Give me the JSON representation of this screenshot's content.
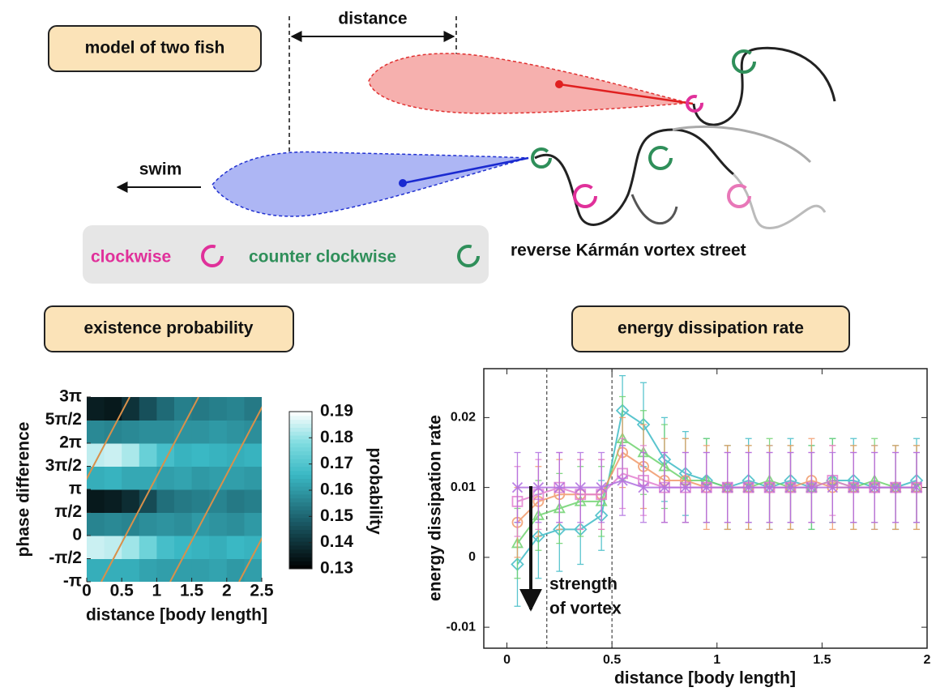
{
  "diagram": {
    "title": "model of two fish",
    "distance_label": "distance",
    "swim_label": "swim",
    "legend": {
      "clockwise": "clockwise",
      "counter_clockwise": "counter clockwise"
    },
    "vortex_label": "reverse Kármán vortex street"
  },
  "chart_data": [
    {
      "type": "heatmap",
      "title": "existence probability",
      "x_label": "distance [body length]",
      "y_label": "phase difference",
      "xlim": [
        0,
        2.5
      ],
      "xticks": [
        0,
        0.5,
        1,
        1.5,
        2,
        2.5
      ],
      "ylim": [
        -3.1416,
        9.4248
      ],
      "yticks": [
        {
          "value": -3.1416,
          "label": "-π"
        },
        {
          "value": -1.5708,
          "label": "-π/2"
        },
        0,
        {
          "value": 1.5708,
          "label": "π/2"
        },
        {
          "value": 3.1416,
          "label": "π"
        },
        {
          "value": 4.7124,
          "label": "3π/2"
        },
        {
          "value": 6.2832,
          "label": "2π"
        },
        {
          "value": 7.854,
          "label": "5π/2"
        },
        {
          "value": 9.4248,
          "label": "3π"
        }
      ],
      "z": [
        [
          0.164,
          0.164,
          0.164,
          0.162,
          0.161,
          0.161,
          0.161,
          0.162,
          0.16,
          0.161
        ],
        [
          0.185,
          0.184,
          0.181,
          0.175,
          0.168,
          0.166,
          0.165,
          0.164,
          0.166,
          0.165
        ],
        [
          0.156,
          0.157,
          0.156,
          0.158,
          0.159,
          0.158,
          0.16,
          0.159,
          0.158,
          0.16
        ],
        [
          0.135,
          0.136,
          0.139,
          0.145,
          0.152,
          0.154,
          0.155,
          0.156,
          0.154,
          0.155
        ],
        [
          0.164,
          0.165,
          0.163,
          0.163,
          0.161,
          0.162,
          0.16,
          0.161,
          0.161,
          0.16
        ],
        [
          0.184,
          0.185,
          0.182,
          0.174,
          0.168,
          0.165,
          0.166,
          0.165,
          0.164,
          0.165
        ],
        [
          0.157,
          0.156,
          0.157,
          0.158,
          0.158,
          0.159,
          0.159,
          0.16,
          0.159,
          0.158
        ],
        [
          0.136,
          0.135,
          0.14,
          0.146,
          0.151,
          0.155,
          0.154,
          0.155,
          0.156,
          0.154
        ]
      ],
      "zlim": [
        0.13,
        0.19
      ],
      "zticks": [
        0.13,
        0.14,
        0.15,
        0.16,
        0.17,
        0.18,
        0.19
      ],
      "colorbar_label": "probability"
    },
    {
      "type": "line",
      "title": "energy dissipation rate",
      "x_label": "distance  [body length]",
      "y_label": "energy dissipation rate",
      "annotation": [
        "strength",
        "of vortex"
      ],
      "xlim": [
        -0.11,
        2
      ],
      "xticks": [
        0,
        0.5,
        1,
        1.5,
        2
      ],
      "ylim": [
        -0.013,
        0.027
      ],
      "yticks": [
        -0.01,
        0,
        0.01,
        0.02
      ],
      "vlines": [
        0.19,
        0.5
      ],
      "x": [
        0.05,
        0.15,
        0.25,
        0.35,
        0.45,
        0.55,
        0.65,
        0.75,
        0.85,
        0.95,
        1.05,
        1.15,
        1.25,
        1.35,
        1.45,
        1.55,
        1.65,
        1.75,
        1.85,
        1.95
      ],
      "series": [
        {
          "color": "#3fbcc6",
          "marker": "diamond",
          "values": [
            -0.001,
            0.003,
            0.004,
            0.004,
            0.006,
            0.021,
            0.019,
            0.014,
            0.012,
            0.011,
            0.01,
            0.011,
            0.01,
            0.011,
            0.01,
            0.011,
            0.011,
            0.01,
            0.01,
            0.011
          ],
          "errors": [
            0.006,
            0.006,
            0.006,
            0.005,
            0.005,
            0.005,
            0.006,
            0.006,
            0.006,
            0.006,
            0.006,
            0.006,
            0.006,
            0.006,
            0.006,
            0.006,
            0.006,
            0.006,
            0.006,
            0.006
          ]
        },
        {
          "color": "#6fd36f",
          "marker": "triangle",
          "values": [
            0.002,
            0.006,
            0.007,
            0.008,
            0.008,
            0.017,
            0.015,
            0.013,
            0.011,
            0.011,
            0.01,
            0.01,
            0.011,
            0.01,
            0.01,
            0.011,
            0.01,
            0.011,
            0.01,
            0.01
          ],
          "errors": [
            0.005,
            0.005,
            0.005,
            0.005,
            0.005,
            0.006,
            0.006,
            0.006,
            0.006,
            0.006,
            0.006,
            0.006,
            0.006,
            0.006,
            0.006,
            0.006,
            0.006,
            0.006,
            0.006,
            0.006
          ]
        },
        {
          "color": "#f09a6a",
          "marker": "circle",
          "values": [
            0.005,
            0.008,
            0.009,
            0.009,
            0.009,
            0.015,
            0.013,
            0.011,
            0.011,
            0.01,
            0.01,
            0.01,
            0.01,
            0.01,
            0.011,
            0.01,
            0.01,
            0.01,
            0.01,
            0.01
          ],
          "errors": [
            0.005,
            0.005,
            0.005,
            0.005,
            0.005,
            0.005,
            0.006,
            0.006,
            0.006,
            0.006,
            0.006,
            0.006,
            0.006,
            0.006,
            0.006,
            0.006,
            0.006,
            0.006,
            0.006,
            0.006
          ]
        },
        {
          "color": "#e27fd0",
          "marker": "square",
          "values": [
            0.008,
            0.009,
            0.01,
            0.009,
            0.009,
            0.012,
            0.011,
            0.01,
            0.01,
            0.01,
            0.01,
            0.01,
            0.01,
            0.01,
            0.01,
            0.011,
            0.01,
            0.01,
            0.01,
            0.01
          ],
          "errors": [
            0.005,
            0.005,
            0.005,
            0.005,
            0.005,
            0.005,
            0.005,
            0.005,
            0.005,
            0.005,
            0.005,
            0.005,
            0.005,
            0.005,
            0.005,
            0.005,
            0.005,
            0.005,
            0.005,
            0.005
          ]
        },
        {
          "color": "#b06ee0",
          "marker": "cross",
          "values": [
            0.01,
            0.01,
            0.01,
            0.01,
            0.01,
            0.011,
            0.01,
            0.01,
            0.01,
            0.01,
            0.01,
            0.01,
            0.01,
            0.01,
            0.01,
            0.01,
            0.01,
            0.01,
            0.01,
            0.01
          ],
          "errors": [
            0.005,
            0.005,
            0.005,
            0.005,
            0.005,
            0.005,
            0.005,
            0.005,
            0.005,
            0.005,
            0.005,
            0.005,
            0.005,
            0.005,
            0.005,
            0.005,
            0.005,
            0.005,
            0.005,
            0.005
          ]
        }
      ]
    }
  ]
}
